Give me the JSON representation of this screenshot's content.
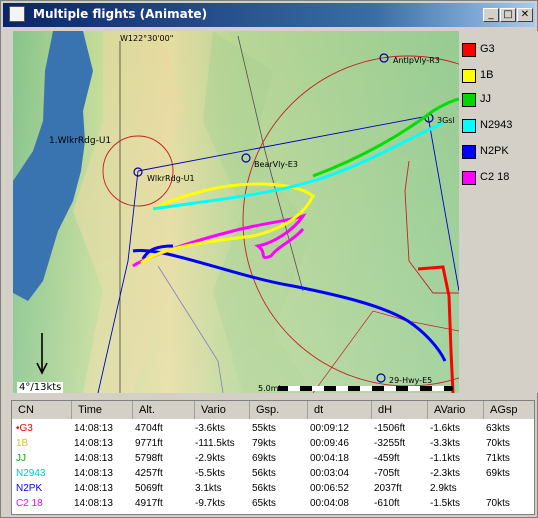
{
  "window": {
    "title": "Multiple flights (Animate)"
  },
  "title_buttons": {
    "minimize": "_",
    "maximize": "□",
    "close": "✕"
  },
  "map": {
    "meridian_label": "W122°30'00\"",
    "lake_label": "1.WlkrRdg-U1",
    "waypoints": [
      "AntlpVly-R3",
      "BearVly-E3",
      "WlkrRdg-U1",
      "3Gsl",
      "29-Hwy-E5"
    ],
    "wind_label": "4°/13kts",
    "scale_label": "5.0mi"
  },
  "legend": [
    {
      "name": "G3",
      "color": "#ff0000"
    },
    {
      "name": "1B",
      "color": "#ffff00"
    },
    {
      "name": "JJ",
      "color": "#00d800"
    },
    {
      "name": "N2943",
      "color": "#00ffff"
    },
    {
      "name": "N2PK",
      "color": "#0000ff"
    },
    {
      "name": "C2 18",
      "color": "#ff00ff"
    }
  ],
  "table": {
    "columns": [
      "CN",
      "Time",
      "Alt.",
      "Vario",
      "Gsp.",
      "dt",
      "dH",
      "AVario",
      "AGsp"
    ],
    "rows": [
      {
        "cn": "•G3",
        "color": "#ff0000",
        "cells": [
          "14:08:13",
          "4704ft",
          "-3.6kts",
          "55kts",
          "00:09:12",
          "-1506ft",
          "-1.6kts",
          "63kts"
        ]
      },
      {
        "cn": "1B",
        "color": "#e0c800",
        "cells": [
          "14:08:13",
          "9771ft",
          "-111.5kts",
          "79kts",
          "00:09:46",
          "-3255ft",
          "-3.3kts",
          "70kts"
        ]
      },
      {
        "cn": "JJ",
        "color": "#00b800",
        "cells": [
          "14:08:13",
          "5798ft",
          "-2.9kts",
          "69kts",
          "00:04:18",
          "-459ft",
          "-1.1kts",
          "71kts"
        ]
      },
      {
        "cn": "N2943",
        "color": "#00c8c8",
        "cells": [
          "14:08:13",
          "4257ft",
          "-5.5kts",
          "56kts",
          "00:03:04",
          "-705ft",
          "-2.3kts",
          "69kts"
        ]
      },
      {
        "cn": "N2PK",
        "color": "#0000ff",
        "cells": [
          "14:08:13",
          "5069ft",
          "3.1kts",
          "56kts",
          "00:06:52",
          "2037ft",
          "2.9kts",
          ""
        ]
      },
      {
        "cn": "C2 18",
        "color": "#ff00ff",
        "cells": [
          "14:08:13",
          "4917ft",
          "-9.7kts",
          "65kts",
          "00:04:08",
          "-610ft",
          "-1.5kts",
          "70kts"
        ]
      }
    ]
  }
}
